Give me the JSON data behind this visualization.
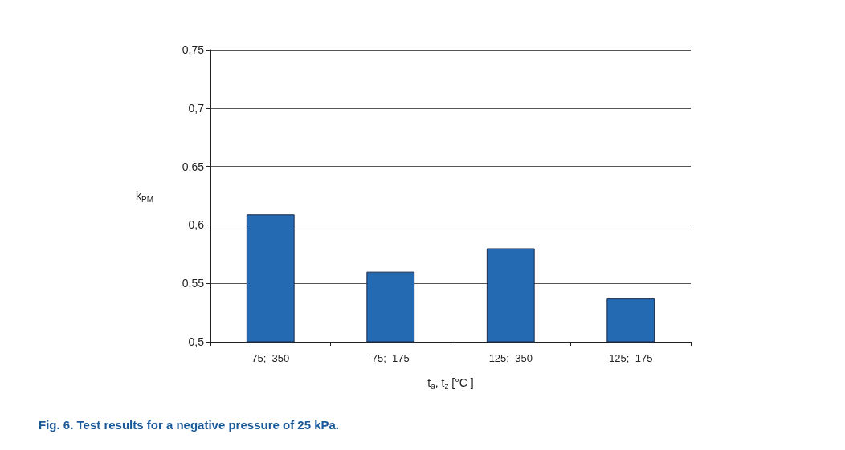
{
  "chart_data": {
    "type": "bar",
    "categories": [
      "75;  350",
      "75;  175",
      "125;  350",
      "125;  175"
    ],
    "values": [
      0.609,
      0.56,
      0.58,
      0.537
    ],
    "color": "#236ab3",
    "ylim": [
      0.5,
      0.75
    ],
    "yticks": [
      {
        "value": 0.5,
        "label": "0,5"
      },
      {
        "value": 0.55,
        "label": "0,55"
      },
      {
        "value": 0.6,
        "label": "0,6"
      },
      {
        "value": 0.65,
        "label": "0,65"
      },
      {
        "value": 0.7,
        "label": "0,7"
      },
      {
        "value": 0.75,
        "label": "0,75"
      }
    ],
    "grid": "y",
    "xlabel": "t$_{a}$, t$_{z}$ [°C ]",
    "ylabel": "k$_{PM}$",
    "annotations": [
      "Fig. 6. Test results for a negative pressure of 25 kPa."
    ]
  }
}
